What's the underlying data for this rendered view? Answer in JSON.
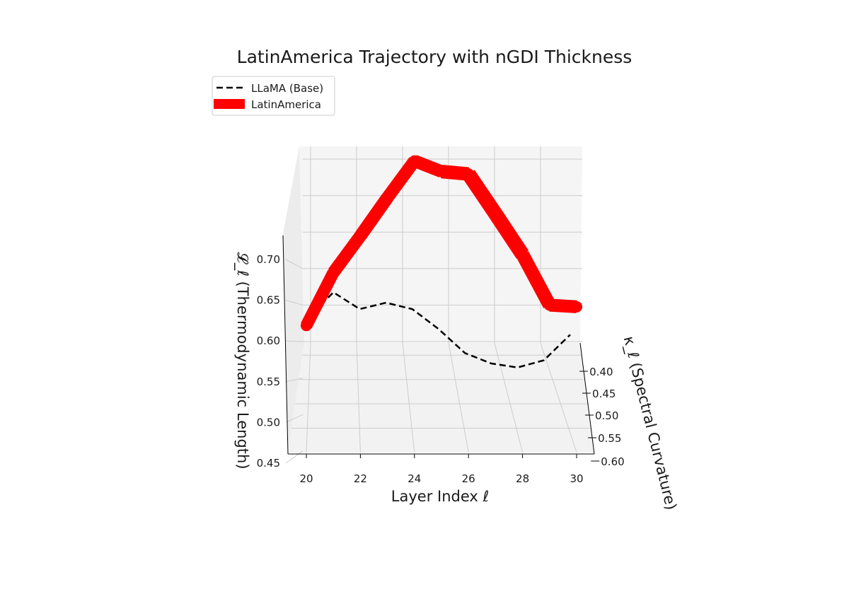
{
  "chart_data": {
    "type": "line",
    "projection": "3d",
    "title": "LatinAmerica Trajectory with nGDI Thickness",
    "xlabel": "Layer Index ℓ",
    "ylabel": "κ_ℓ (Spectral Curvature)",
    "zlabel": "𝓛_ℓ (Thermodynamic Length)",
    "x_ticks": [
      "20",
      "22",
      "24",
      "26",
      "28",
      "30"
    ],
    "y_ticks": [
      "0.40",
      "0.45",
      "0.50",
      "0.55",
      "0.60"
    ],
    "z_ticks": [
      "0.45",
      "0.50",
      "0.55",
      "0.60",
      "0.65",
      "0.70"
    ],
    "xlim": [
      20,
      30
    ],
    "ylim": [
      0.375,
      0.6
    ],
    "zlim": [
      0.45,
      0.86
    ],
    "legend": {
      "position": "top-left",
      "entries": [
        "LLaMA (Base)",
        "LatinAmerica"
      ]
    },
    "series": [
      {
        "name": "LLaMA (Base)",
        "color": "#000000",
        "style": "dashed",
        "x": [
          20,
          21,
          22,
          23,
          24,
          25,
          26,
          27,
          28,
          29,
          30
        ],
        "kappa": [
          0.56,
          0.56,
          0.56,
          0.56,
          0.56,
          0.56,
          0.56,
          0.56,
          0.56,
          0.56,
          0.56
        ],
        "z": [
          0.628,
          0.661,
          0.64,
          0.648,
          0.64,
          0.615,
          0.585,
          0.572,
          0.567,
          0.576,
          0.608
        ]
      },
      {
        "name": "LatinAmerica",
        "color": "#ff0000",
        "style": "solid",
        "x": [
          20,
          21,
          22,
          23,
          24,
          25,
          26,
          27,
          28,
          29,
          30
        ],
        "kappa": [
          0.6,
          0.6,
          0.6,
          0.6,
          0.6,
          0.6,
          0.6,
          0.6,
          0.6,
          0.6,
          0.6
        ],
        "z": [
          0.619,
          0.684,
          0.729,
          0.776,
          0.821,
          0.808,
          0.805,
          0.756,
          0.706,
          0.644,
          0.642
        ],
        "ngdi_thickness": [
          0.7,
          0.75,
          0.8,
          0.8,
          0.75,
          0.8,
          0.95,
          1.0,
          0.95,
          0.8,
          0.8
        ]
      }
    ]
  }
}
